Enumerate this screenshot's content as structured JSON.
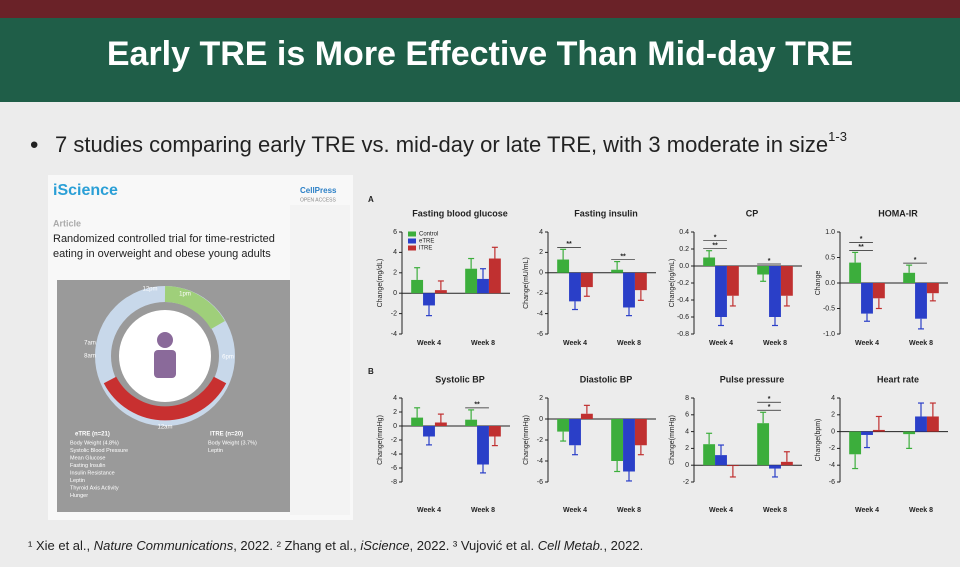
{
  "header": {
    "title": "Early TRE is More Effective Than Mid-day TRE"
  },
  "bullet": {
    "text": "7 studies comparing early TRE vs. mid-day or late TRE, with 3 moderate in size",
    "sup": "1-3"
  },
  "paper": {
    "journal": "iScience",
    "publisher": "CellPress",
    "access": "OPEN ACCESS",
    "kind": "Article",
    "title_lines": [
      "Randomized controlled trial for time-restricted",
      "eating in overweight and obese young adults"
    ],
    "clock": [
      "12pm",
      "1pm",
      "7am",
      "8am",
      "6pm",
      "12am"
    ],
    "etre": {
      "head": "eTRE (n=21)",
      "items": [
        "Body Weight (4.8%)",
        "Systolic Blood Pressure",
        "Mean Glucose",
        "Fasting Insulin",
        "Insulin Resistance",
        "Leptin",
        "Thyroid Axis Activity",
        "Hunger"
      ]
    },
    "ltre": {
      "head": "lTRE (n=20)",
      "items": [
        "Body Weight (3.7%)",
        "Leptin"
      ]
    }
  },
  "panels": [
    "A",
    "B"
  ],
  "chart_data": [
    {
      "type": "bar",
      "title": "Fasting blood glucose",
      "ylabel": "Change(mg/dL)",
      "categories": [
        "Week 4",
        "Week 8"
      ],
      "ylim": [
        -4,
        6
      ],
      "yticks": [
        -4,
        -2,
        0,
        2,
        4,
        6
      ],
      "legend": true,
      "series": [
        {
          "name": "Control",
          "color": "#3cae3c",
          "values": [
            1.3,
            2.4
          ],
          "errors": [
            1.2,
            1.0
          ]
        },
        {
          "name": "eTRE",
          "color": "#2a3fc8",
          "values": [
            -1.2,
            1.4
          ],
          "errors": [
            1.0,
            1.0
          ]
        },
        {
          "name": "lTRE",
          "color": "#c03030",
          "values": [
            0.3,
            3.4
          ],
          "errors": [
            0.9,
            1.1
          ]
        }
      ],
      "annotations": []
    },
    {
      "type": "bar",
      "title": "Fasting insulin",
      "ylabel": "Change(mU/mL)",
      "categories": [
        "Week 4",
        "Week 8"
      ],
      "ylim": [
        -6,
        4
      ],
      "yticks": [
        -6,
        -4,
        -2,
        0,
        2,
        4
      ],
      "series": [
        {
          "color": "#3cae3c",
          "values": [
            1.3,
            0.3
          ],
          "errors": [
            1.0,
            0.8
          ]
        },
        {
          "color": "#2a3fc8",
          "values": [
            -2.8,
            -3.4
          ],
          "errors": [
            0.8,
            0.8
          ]
        },
        {
          "color": "#c03030",
          "values": [
            -1.4,
            -1.7
          ],
          "errors": [
            0.9,
            1.0
          ]
        }
      ],
      "annotations": [
        {
          "label": "**",
          "category": 0
        },
        {
          "label": "**",
          "category": 1
        }
      ]
    },
    {
      "type": "bar",
      "title": "CP",
      "ylabel": "Change(ng/mL)",
      "categories": [
        "Week 4",
        "Week 8"
      ],
      "ylim": [
        -0.8,
        0.4
      ],
      "yticks": [
        -0.8,
        -0.6,
        -0.4,
        -0.2,
        {
          "value": 0,
          "label": "0.0"
        },
        0.2,
        0.4
      ],
      "series": [
        {
          "color": "#3cae3c",
          "values": [
            0.1,
            -0.1
          ],
          "errors": [
            0.08,
            0.08
          ]
        },
        {
          "color": "#2a3fc8",
          "values": [
            -0.6,
            -0.6
          ],
          "errors": [
            0.1,
            0.1
          ]
        },
        {
          "color": "#c03030",
          "values": [
            -0.35,
            -0.35
          ],
          "errors": [
            0.12,
            0.12
          ]
        }
      ],
      "annotations": [
        {
          "label": "**",
          "category": 0
        },
        {
          "label": "*",
          "category": 0
        },
        {
          "label": "*",
          "category": 1
        }
      ]
    },
    {
      "type": "bar",
      "title": "HOMA-IR",
      "ylabel": "Change",
      "categories": [
        "Week 4",
        "Week 8"
      ],
      "ylim": [
        -1,
        1
      ],
      "yticks": [
        {
          "value": -1,
          "label": "-1.0"
        },
        -0.5,
        {
          "value": 0,
          "label": "0.0"
        },
        0.5,
        {
          "value": 1,
          "label": "1.0"
        }
      ],
      "series": [
        {
          "color": "#3cae3c",
          "values": [
            0.4,
            0.2
          ],
          "errors": [
            0.2,
            0.15
          ]
        },
        {
          "color": "#2a3fc8",
          "values": [
            -0.6,
            -0.7
          ],
          "errors": [
            0.15,
            0.2
          ]
        },
        {
          "color": "#c03030",
          "values": [
            -0.3,
            -0.2
          ],
          "errors": [
            0.2,
            0.15
          ]
        }
      ],
      "annotations": [
        {
          "label": "**",
          "category": 0
        },
        {
          "label": "*",
          "category": 0
        },
        {
          "label": "*",
          "category": 1
        }
      ]
    },
    {
      "type": "bar",
      "title": "Systolic BP",
      "ylabel": "Change(mmHg)",
      "categories": [
        "Week 4",
        "Week 8"
      ],
      "ylim": [
        -8,
        4
      ],
      "yticks": [
        -8,
        -6,
        -4,
        -2,
        0,
        2,
        4
      ],
      "series": [
        {
          "color": "#3cae3c",
          "values": [
            1.2,
            0.9
          ],
          "errors": [
            1.4,
            1.4
          ]
        },
        {
          "color": "#2a3fc8",
          "values": [
            -1.5,
            -5.5
          ],
          "errors": [
            1.2,
            1.2
          ]
        },
        {
          "color": "#c03030",
          "values": [
            0.5,
            -1.5
          ],
          "errors": [
            1.2,
            1.3
          ]
        }
      ],
      "annotations": [
        {
          "label": "**",
          "category": 1
        }
      ]
    },
    {
      "type": "bar",
      "title": "Diastolic BP",
      "ylabel": "Change(mmHg)",
      "categories": [
        "Week 4",
        "Week 8"
      ],
      "ylim": [
        -6,
        2
      ],
      "yticks": [
        -6,
        -4,
        -2,
        0,
        2
      ],
      "series": [
        {
          "color": "#3cae3c",
          "values": [
            -1.2,
            -4.0
          ],
          "errors": [
            0.9,
            1.0
          ]
        },
        {
          "color": "#2a3fc8",
          "values": [
            -2.5,
            -5.0
          ],
          "errors": [
            0.9,
            0.9
          ]
        },
        {
          "color": "#c03030",
          "values": [
            0.5,
            -2.5
          ],
          "errors": [
            0.8,
            0.9
          ]
        }
      ],
      "annotations": []
    },
    {
      "type": "bar",
      "title": "Pulse pressure",
      "ylabel": "Change(mmHg)",
      "categories": [
        "Week 4",
        "Week 8"
      ],
      "ylim": [
        -2,
        8
      ],
      "yticks": [
        -2,
        0,
        2,
        4,
        6,
        8
      ],
      "series": [
        {
          "color": "#3cae3c",
          "values": [
            2.5,
            5.0
          ],
          "errors": [
            1.3,
            1.3
          ]
        },
        {
          "color": "#2a3fc8",
          "values": [
            1.2,
            -0.4
          ],
          "errors": [
            1.2,
            1.0
          ]
        },
        {
          "color": "#c03030",
          "values": [
            -0.1,
            0.4
          ],
          "errors": [
            1.3,
            1.2
          ]
        }
      ],
      "annotations": [
        {
          "label": "*",
          "category": 1
        },
        {
          "label": "*",
          "category": 1
        }
      ]
    },
    {
      "type": "bar",
      "title": "Heart rate",
      "ylabel": "Change(bpm)",
      "categories": [
        "Week 4",
        "Week 8"
      ],
      "ylim": [
        -6,
        4
      ],
      "yticks": [
        -6,
        -4,
        -2,
        0,
        2,
        4
      ],
      "series": [
        {
          "color": "#3cae3c",
          "values": [
            -2.7,
            -0.3
          ],
          "errors": [
            1.7,
            1.7
          ]
        },
        {
          "color": "#2a3fc8",
          "values": [
            -0.4,
            1.8
          ],
          "errors": [
            1.5,
            1.6
          ]
        },
        {
          "color": "#c03030",
          "values": [
            0.2,
            1.8
          ],
          "errors": [
            1.6,
            1.6
          ]
        }
      ],
      "annotations": []
    }
  ],
  "footer": {
    "parts": [
      {
        "text": "¹ Xie et al., "
      },
      {
        "text": "Nature Communications",
        "italic": true
      },
      {
        "text": ", 2022. ² Zhang et al., "
      },
      {
        "text": "iScience",
        "italic": true
      },
      {
        "text": ", 2022. ³ Vujović et al. "
      },
      {
        "text": "Cell Metab.",
        "italic": true
      },
      {
        "text": ", 2022."
      }
    ]
  }
}
